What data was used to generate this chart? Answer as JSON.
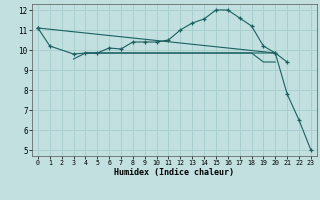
{
  "bg_color": "#c2e0e0",
  "grid_color": "#aacfcf",
  "line_color": "#1a6060",
  "xlabel": "Humidex (Indice chaleur)",
  "xlim": [
    -0.5,
    23.5
  ],
  "ylim": [
    4.7,
    12.3
  ],
  "yticks": [
    5,
    6,
    7,
    8,
    9,
    10,
    11,
    12
  ],
  "xticks": [
    0,
    1,
    2,
    3,
    4,
    5,
    6,
    7,
    8,
    9,
    10,
    11,
    12,
    13,
    14,
    15,
    16,
    17,
    18,
    19,
    20,
    21,
    22,
    23
  ],
  "series_main": {
    "x": [
      0,
      1,
      3,
      4,
      5,
      6,
      7,
      8,
      9,
      10,
      11,
      12,
      13,
      14,
      15,
      16,
      17,
      18,
      19,
      20,
      21
    ],
    "y": [
      11.1,
      10.2,
      9.8,
      9.85,
      9.85,
      10.1,
      10.05,
      10.4,
      10.4,
      10.4,
      10.5,
      11.0,
      11.35,
      11.55,
      12.0,
      12.0,
      11.6,
      11.2,
      10.2,
      9.85,
      9.4
    ]
  },
  "series_diag": {
    "x": [
      0,
      20,
      21,
      22,
      23
    ],
    "y": [
      11.1,
      9.85,
      7.8,
      6.5,
      5.0
    ]
  },
  "series_flat1": {
    "x": [
      3,
      4,
      5,
      6,
      7,
      8,
      9,
      10,
      11,
      12,
      13,
      14,
      15,
      16,
      17,
      18,
      19,
      20
    ],
    "y": [
      9.55,
      9.85,
      9.85,
      9.85,
      9.85,
      9.85,
      9.85,
      9.85,
      9.85,
      9.85,
      9.85,
      9.85,
      9.85,
      9.85,
      9.85,
      9.85,
      9.85,
      9.85
    ]
  },
  "series_flat2": {
    "x": [
      4,
      5,
      6,
      7,
      8,
      9,
      10,
      11,
      12,
      13,
      14,
      15,
      16,
      17,
      18,
      19,
      20
    ],
    "y": [
      9.85,
      9.85,
      9.85,
      9.85,
      9.85,
      9.85,
      9.85,
      9.85,
      9.85,
      9.85,
      9.85,
      9.85,
      9.85,
      9.85,
      9.85,
      9.4,
      9.4
    ]
  }
}
